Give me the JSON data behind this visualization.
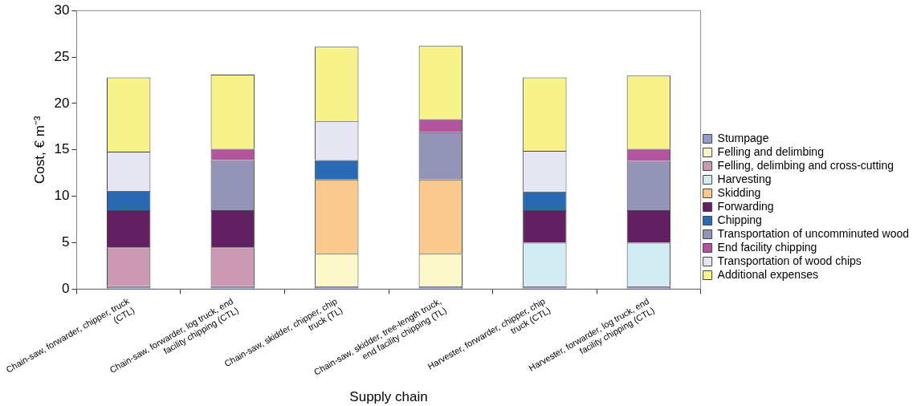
{
  "chart_data": {
    "type": "bar",
    "stacked": true,
    "xlabel": "Supply chain",
    "ylabel": "Cost, € m⁻³",
    "categories": [
      "Chain-saw, forwarder, chipper, truck (CTL)",
      "Chain-saw, forwarder, log truck, end facility chipping (CTL)",
      "Chain-saw, skidder, chipper, chip truck (TL)",
      "Chain-saw, skidder, tree-length truck, end facility chipping (TL)",
      "Harvester, forwarder, chipper, chip truck (CTL)",
      "Harvester, forwarder, log truck, end facility chipping (CTL)"
    ],
    "ylim": [
      0,
      30
    ],
    "yticks": [
      0,
      5,
      10,
      15,
      20,
      25,
      30
    ],
    "grid": false,
    "legend": "right",
    "series": [
      {
        "name": "Stumpage",
        "color": "#9999cc",
        "values": [
          0.3,
          0.3,
          0.3,
          0.3,
          0.3,
          0.3
        ]
      },
      {
        "name": "Felling and delimbing",
        "color": "#fcf8cc",
        "values": [
          null,
          null,
          3.5,
          3.5,
          null,
          null
        ]
      },
      {
        "name": "Felling, delimbing and cross-cutting",
        "color": "#cc99b3",
        "values": [
          4.2,
          4.2,
          null,
          null,
          null,
          null
        ]
      },
      {
        "name": "Harvesting",
        "color": "#d3ecf2",
        "values": [
          null,
          null,
          null,
          null,
          4.7,
          4.7
        ]
      },
      {
        "name": "Skidding",
        "color": "#f9c98e",
        "values": [
          null,
          null,
          8.0,
          8.0,
          null,
          null
        ]
      },
      {
        "name": "Forwarding",
        "color": "#622062",
        "values": [
          4.0,
          4.0,
          null,
          null,
          3.5,
          3.5
        ]
      },
      {
        "name": "Chipping",
        "color": "#2a6ab4",
        "values": [
          2.1,
          null,
          2.1,
          null,
          2.0,
          null
        ]
      },
      {
        "name": "Transportation of uncomminuted wood",
        "color": "#9494b8",
        "values": [
          null,
          5.4,
          null,
          5.1,
          null,
          5.3
        ]
      },
      {
        "name": "End facility chipping",
        "color": "#b3559e",
        "values": [
          null,
          1.2,
          null,
          1.4,
          null,
          1.3
        ]
      },
      {
        "name": "Transportation of wood chips",
        "color": "#e6e6f2",
        "values": [
          4.2,
          null,
          4.2,
          null,
          4.4,
          null
        ]
      },
      {
        "name": "Additional expenses",
        "color": "#f7f38a",
        "values": [
          8.0,
          8.0,
          8.0,
          7.9,
          7.9,
          7.9
        ]
      }
    ]
  }
}
